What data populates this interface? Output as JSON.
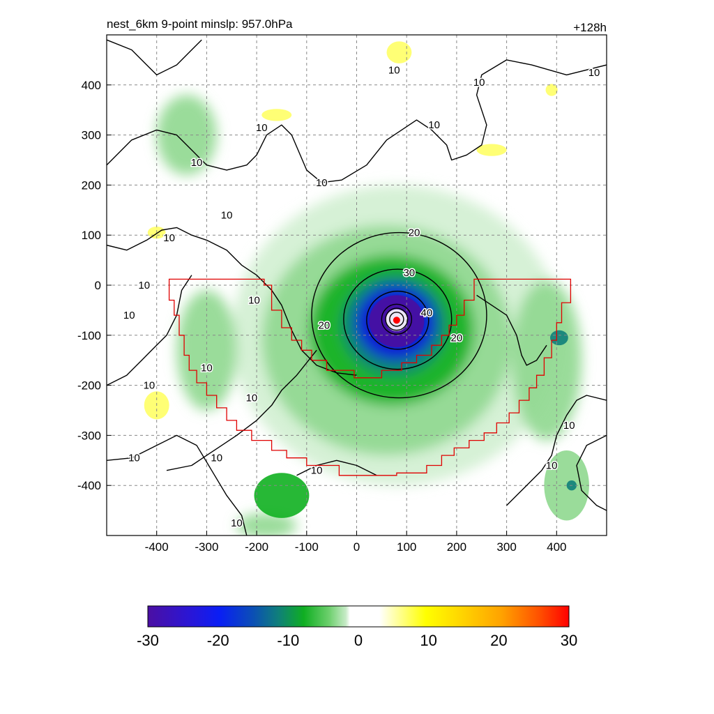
{
  "chart_data": {
    "type": "heatmap",
    "title": "nest_6km  9-point minslp: 957.0hPa",
    "time_label": "+128h",
    "xlabel": "",
    "ylabel": "",
    "xlim": [
      -500,
      500
    ],
    "ylim": [
      -500,
      500
    ],
    "x_ticks": [
      -400,
      -300,
      -200,
      -100,
      0,
      100,
      200,
      300,
      400
    ],
    "y_ticks": [
      400,
      300,
      200,
      100,
      0,
      -100,
      -200,
      -300,
      -400
    ],
    "grid": true,
    "storm_center": [
      80,
      -70
    ],
    "shading_colors": {
      "strong_negative": "#4a0f9e",
      "negative_blue": "#1010e0",
      "negative_teal": "#0f7f7a",
      "negative_green": "#10b020",
      "weak_negative": "#8fd88f",
      "faint_negative": "#d2efd2",
      "positive_yellow": "#ffff66",
      "strong_positive": "#ff0000"
    },
    "shaded_regions": [
      {
        "cx": 80,
        "cy": -100,
        "rx": 330,
        "ry": 300,
        "value": -6
      },
      {
        "cx": 60,
        "cy": -110,
        "rx": 250,
        "ry": 230,
        "value": -10
      },
      {
        "cx": 70,
        "cy": -90,
        "rx": 165,
        "ry": 150,
        "value": -13
      },
      {
        "cx": 75,
        "cy": -80,
        "rx": 105,
        "ry": 100,
        "value": -17
      },
      {
        "cx": 78,
        "cy": -75,
        "rx": 80,
        "ry": 75,
        "value": -21
      },
      {
        "cx": 80,
        "cy": -72,
        "rx": 55,
        "ry": 52,
        "value": -27
      },
      {
        "cx": 80,
        "cy": -70,
        "rx": 22,
        "ry": 22,
        "value": 0
      },
      {
        "cx": -340,
        "cy": 300,
        "rx": 60,
        "ry": 80,
        "value": -9
      },
      {
        "cx": -300,
        "cy": -130,
        "rx": 60,
        "ry": 120,
        "value": -9
      },
      {
        "cx": 380,
        "cy": -150,
        "rx": 70,
        "ry": 160,
        "value": -9
      },
      {
        "cx": 405,
        "cy": -105,
        "rx": 18,
        "ry": 15,
        "value": -18
      },
      {
        "cx": 420,
        "cy": -400,
        "rx": 45,
        "ry": 70,
        "value": -10
      },
      {
        "cx": 430,
        "cy": -400,
        "rx": 10,
        "ry": 10,
        "value": -18
      },
      {
        "cx": -150,
        "cy": -420,
        "rx": 55,
        "ry": 45,
        "value": -11
      },
      {
        "cx": -180,
        "cy": -480,
        "rx": 60,
        "ry": 25,
        "value": -10
      },
      {
        "cx": -400,
        "cy": -240,
        "rx": 25,
        "ry": 28,
        "value": 6
      },
      {
        "cx": -160,
        "cy": 340,
        "rx": 30,
        "ry": 12,
        "value": 6
      },
      {
        "cx": 85,
        "cy": 465,
        "rx": 25,
        "ry": 22,
        "value": 6
      },
      {
        "cx": 270,
        "cy": 270,
        "rx": 30,
        "ry": 12,
        "value": 6
      },
      {
        "cx": 390,
        "cy": 390,
        "rx": 12,
        "ry": 12,
        "value": 6
      },
      {
        "cx": -400,
        "cy": 105,
        "rx": 18,
        "ry": 12,
        "value": 6
      }
    ],
    "contour_label_values": [
      10,
      20,
      30,
      40
    ],
    "contour_labels": [
      {
        "x": 75,
        "y": 430,
        "text": "10"
      },
      {
        "x": 245,
        "y": 405,
        "text": "10"
      },
      {
        "x": 475,
        "y": 425,
        "text": "10"
      },
      {
        "x": -190,
        "y": 315,
        "text": "10"
      },
      {
        "x": 155,
        "y": 320,
        "text": "10"
      },
      {
        "x": -320,
        "y": 245,
        "text": "10"
      },
      {
        "x": -70,
        "y": 205,
        "text": "10"
      },
      {
        "x": -260,
        "y": 140,
        "text": "10"
      },
      {
        "x": -375,
        "y": 95,
        "text": "10"
      },
      {
        "x": -425,
        "y": 0,
        "text": "10"
      },
      {
        "x": -455,
        "y": -60,
        "text": "10"
      },
      {
        "x": -205,
        "y": -30,
        "text": "10"
      },
      {
        "x": -300,
        "y": -165,
        "text": "10"
      },
      {
        "x": -415,
        "y": -200,
        "text": "10"
      },
      {
        "x": -210,
        "y": -225,
        "text": "10"
      },
      {
        "x": -445,
        "y": -345,
        "text": "10"
      },
      {
        "x": -280,
        "y": -345,
        "text": "10"
      },
      {
        "x": -80,
        "y": -370,
        "text": "10"
      },
      {
        "x": 425,
        "y": -280,
        "text": "10"
      },
      {
        "x": 390,
        "y": -360,
        "text": "10"
      },
      {
        "x": -240,
        "y": -475,
        "text": "10"
      },
      {
        "x": 115,
        "y": 105,
        "text": "20"
      },
      {
        "x": -65,
        "y": -80,
        "text": "20"
      },
      {
        "x": 200,
        "y": -105,
        "text": "20"
      },
      {
        "x": 105,
        "y": 25,
        "text": "30"
      },
      {
        "x": 140,
        "y": -55,
        "text": "40"
      }
    ],
    "contours": [
      {
        "level": 20,
        "cx": 85,
        "cy": -60,
        "rx": 175,
        "ry": 165
      },
      {
        "level": 30,
        "cx": 82,
        "cy": -68,
        "rx": 108,
        "ry": 100
      },
      {
        "level": 40,
        "cx": 82,
        "cy": -70,
        "rx": 62,
        "ry": 58
      },
      {
        "level": 50,
        "cx": 80,
        "cy": -68,
        "rx": 30,
        "ry": 30
      },
      {
        "level": 60,
        "cx": 80,
        "cy": -68,
        "rx": 22,
        "ry": 22
      },
      {
        "level": 70,
        "cx": 80,
        "cy": -68,
        "rx": 14,
        "ry": 14
      }
    ],
    "contour_lines_10": [
      [
        [
          -500,
          490
        ],
        [
          -450,
          470
        ],
        [
          -420,
          440
        ],
        [
          -400,
          420
        ],
        [
          -360,
          440
        ],
        [
          -330,
          470
        ],
        [
          -310,
          490
        ]
      ],
      [
        [
          -500,
          240
        ],
        [
          -450,
          290
        ],
        [
          -400,
          310
        ],
        [
          -360,
          300
        ],
        [
          -330,
          270
        ],
        [
          -300,
          240
        ],
        [
          -260,
          230
        ],
        [
          -220,
          240
        ],
        [
          -200,
          260
        ],
        [
          -180,
          300
        ],
        [
          -150,
          320
        ],
        [
          -130,
          300
        ],
        [
          -100,
          230
        ],
        [
          -70,
          205
        ],
        [
          -30,
          210
        ],
        [
          20,
          240
        ],
        [
          60,
          290
        ],
        [
          120,
          330
        ],
        [
          150,
          310
        ],
        [
          180,
          280
        ],
        [
          190,
          250
        ],
        [
          220,
          260
        ],
        [
          250,
          280
        ],
        [
          260,
          320
        ],
        [
          240,
          380
        ],
        [
          250,
          420
        ],
        [
          300,
          450
        ],
        [
          350,
          440
        ],
        [
          420,
          420
        ],
        [
          500,
          440
        ]
      ],
      [
        [
          -500,
          80
        ],
        [
          -460,
          70
        ],
        [
          -420,
          90
        ],
        [
          -390,
          110
        ],
        [
          -360,
          115
        ],
        [
          -330,
          100
        ],
        [
          -300,
          90
        ],
        [
          -260,
          70
        ],
        [
          -230,
          40
        ],
        [
          -200,
          20
        ],
        [
          -170,
          -10
        ],
        [
          -150,
          -40
        ],
        [
          -130,
          -90
        ],
        [
          -110,
          -130
        ],
        [
          -80,
          -160
        ],
        [
          -40,
          -175
        ],
        [
          0,
          -180
        ]
      ],
      [
        [
          -500,
          -200
        ],
        [
          -460,
          -180
        ],
        [
          -430,
          -150
        ],
        [
          -410,
          -130
        ],
        [
          -380,
          -100
        ],
        [
          -360,
          -60
        ],
        [
          -350,
          -10
        ],
        [
          -330,
          20
        ]
      ],
      [
        [
          -500,
          -350
        ],
        [
          -450,
          -345
        ],
        [
          -400,
          -320
        ],
        [
          -360,
          -300
        ],
        [
          -320,
          -320
        ],
        [
          -290,
          -370
        ],
        [
          -260,
          -420
        ],
        [
          -230,
          -460
        ],
        [
          -220,
          -500
        ]
      ],
      [
        [
          -380,
          -370
        ],
        [
          -330,
          -360
        ],
        [
          -300,
          -340
        ],
        [
          -270,
          -320
        ],
        [
          -240,
          -300
        ],
        [
          -200,
          -270
        ],
        [
          -170,
          -240
        ],
        [
          -150,
          -210
        ],
        [
          -120,
          -180
        ],
        [
          -80,
          -130
        ]
      ],
      [
        [
          -120,
          -380
        ],
        [
          -80,
          -360
        ],
        [
          -40,
          -350
        ],
        [
          0,
          -360
        ],
        [
          40,
          -380
        ]
      ],
      [
        [
          300,
          -440
        ],
        [
          340,
          -400
        ],
        [
          370,
          -370
        ],
        [
          390,
          -340
        ],
        [
          400,
          -300
        ],
        [
          420,
          -260
        ],
        [
          440,
          -230
        ],
        [
          460,
          -220
        ],
        [
          500,
          -230
        ]
      ],
      [
        [
          500,
          -300
        ],
        [
          460,
          -320
        ],
        [
          440,
          -360
        ],
        [
          450,
          -410
        ],
        [
          480,
          -440
        ],
        [
          500,
          -450
        ]
      ],
      [
        [
          240,
          -20
        ],
        [
          270,
          -40
        ],
        [
          300,
          -60
        ],
        [
          320,
          -100
        ],
        [
          330,
          -140
        ],
        [
          340,
          -160
        ],
        [
          360,
          -150
        ],
        [
          380,
          -120
        ]
      ]
    ],
    "red_boundary": [
      [
        -375,
        12
      ],
      [
        -185,
        12
      ],
      [
        -185,
        0
      ],
      [
        -170,
        0
      ],
      [
        -170,
        -50
      ],
      [
        -150,
        -50
      ],
      [
        -150,
        -85
      ],
      [
        -130,
        -85
      ],
      [
        -130,
        -110
      ],
      [
        -110,
        -110
      ],
      [
        -110,
        -130
      ],
      [
        -90,
        -130
      ],
      [
        -90,
        -150
      ],
      [
        -60,
        -150
      ],
      [
        -60,
        -170
      ],
      [
        -5,
        -170
      ],
      [
        -5,
        -185
      ],
      [
        50,
        -185
      ],
      [
        50,
        -170
      ],
      [
        90,
        -170
      ],
      [
        90,
        -155
      ],
      [
        120,
        -155
      ],
      [
        120,
        -140
      ],
      [
        150,
        -140
      ],
      [
        150,
        -120
      ],
      [
        170,
        -120
      ],
      [
        170,
        -100
      ],
      [
        185,
        -100
      ],
      [
        185,
        -80
      ],
      [
        200,
        -80
      ],
      [
        200,
        -60
      ],
      [
        215,
        -60
      ],
      [
        215,
        -30
      ],
      [
        235,
        -30
      ],
      [
        235,
        12
      ],
      [
        428,
        12
      ],
      [
        428,
        -35
      ],
      [
        410,
        -35
      ],
      [
        410,
        -75
      ],
      [
        400,
        -75
      ],
      [
        400,
        -110
      ],
      [
        390,
        -110
      ],
      [
        390,
        -145
      ],
      [
        375,
        -145
      ],
      [
        375,
        -180
      ],
      [
        360,
        -180
      ],
      [
        360,
        -205
      ],
      [
        345,
        -205
      ],
      [
        345,
        -230
      ],
      [
        325,
        -230
      ],
      [
        325,
        -255
      ],
      [
        305,
        -255
      ],
      [
        305,
        -275
      ],
      [
        280,
        -275
      ],
      [
        280,
        -295
      ],
      [
        255,
        -295
      ],
      [
        255,
        -310
      ],
      [
        225,
        -310
      ],
      [
        225,
        -325
      ],
      [
        195,
        -325
      ],
      [
        195,
        -340
      ],
      [
        170,
        -340
      ],
      [
        170,
        -360
      ],
      [
        140,
        -360
      ],
      [
        140,
        -375
      ],
      [
        80,
        -375
      ],
      [
        80,
        -380
      ],
      [
        -35,
        -380
      ],
      [
        -35,
        -360
      ],
      [
        -100,
        -360
      ],
      [
        -100,
        -345
      ],
      [
        -140,
        -345
      ],
      [
        -140,
        -330
      ],
      [
        -170,
        -330
      ],
      [
        -170,
        -310
      ],
      [
        -210,
        -310
      ],
      [
        -210,
        -290
      ],
      [
        -240,
        -290
      ],
      [
        -240,
        -270
      ],
      [
        -260,
        -270
      ],
      [
        -260,
        -245
      ],
      [
        -280,
        -245
      ],
      [
        -280,
        -220
      ],
      [
        -300,
        -220
      ],
      [
        -300,
        -195
      ],
      [
        -320,
        -195
      ],
      [
        -320,
        -170
      ],
      [
        -335,
        -170
      ],
      [
        -335,
        -140
      ],
      [
        -345,
        -140
      ],
      [
        -345,
        -100
      ],
      [
        -355,
        -100
      ],
      [
        -355,
        -60
      ],
      [
        -365,
        -60
      ],
      [
        -365,
        -30
      ],
      [
        -375,
        -30
      ],
      [
        -375,
        12
      ]
    ],
    "colorbar": {
      "min": -30,
      "max": 30,
      "tick_labels": [
        "-30",
        "-20",
        "-10",
        "0",
        "10",
        "20",
        "30"
      ]
    }
  }
}
